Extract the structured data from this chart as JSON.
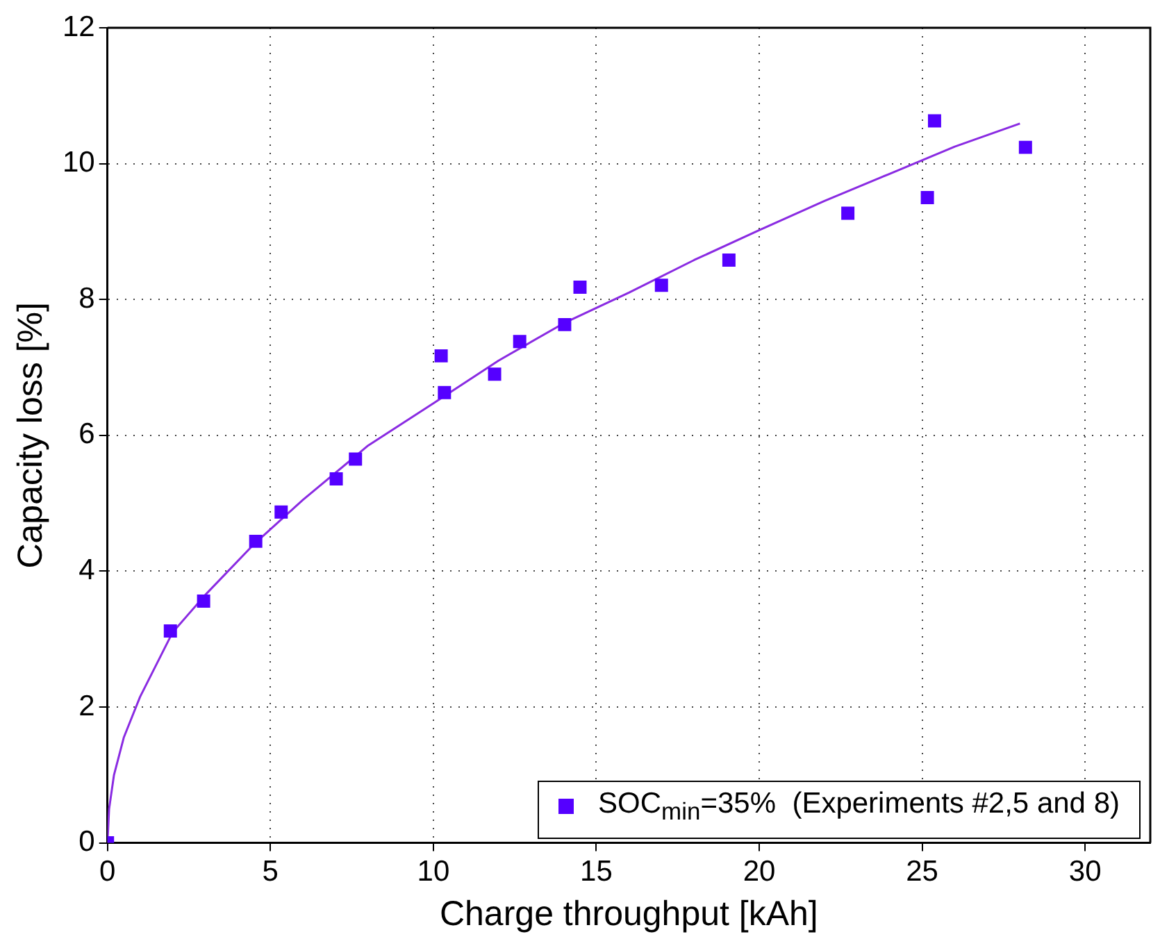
{
  "chart_data": {
    "type": "scatter",
    "xlabel": "Charge throughput [kAh]",
    "ylabel": "Capacity loss [%]",
    "xlim": [
      0,
      32
    ],
    "xticks": [
      0,
      5,
      10,
      15,
      20,
      25,
      30
    ],
    "ylim": [
      0,
      12
    ],
    "yticks": [
      0,
      2,
      4,
      6,
      8,
      10,
      12
    ],
    "grid": true,
    "legend": "bottom right",
    "marker": "square",
    "series": [
      {
        "name": "SOC$_{min}$=35%  (Experiments #2,5 and 8)",
        "color": "#5500ff",
        "x": [
          0,
          1.93,
          2.95,
          4.55,
          5.33,
          7.02,
          7.61,
          10.24,
          10.34,
          11.88,
          12.65,
          14.03,
          14.5,
          17.0,
          19.07,
          22.72,
          25.16,
          25.38,
          28.17
        ],
        "values": [
          0,
          3.12,
          3.56,
          4.44,
          4.87,
          5.36,
          5.65,
          7.17,
          6.63,
          6.9,
          7.38,
          7.63,
          8.18,
          8.21,
          8.58,
          9.27,
          9.5,
          10.63,
          10.24
        ]
      },
      {
        "type": "line",
        "color": "#8a2be2",
        "marker": "none",
        "line_style": "solid",
        "x": [
          0,
          0.05,
          0.2,
          0.5,
          1,
          2,
          3,
          4.5,
          6,
          8,
          10,
          12,
          14,
          16,
          18,
          20,
          22,
          24,
          26,
          28
        ],
        "values": [
          0,
          0.5,
          1.0,
          1.55,
          2.15,
          3.1,
          3.65,
          4.4,
          5.05,
          5.85,
          6.47,
          7.1,
          7.65,
          8.1,
          8.58,
          9.02,
          9.45,
          9.85,
          10.25,
          10.59
        ]
      }
    ]
  }
}
